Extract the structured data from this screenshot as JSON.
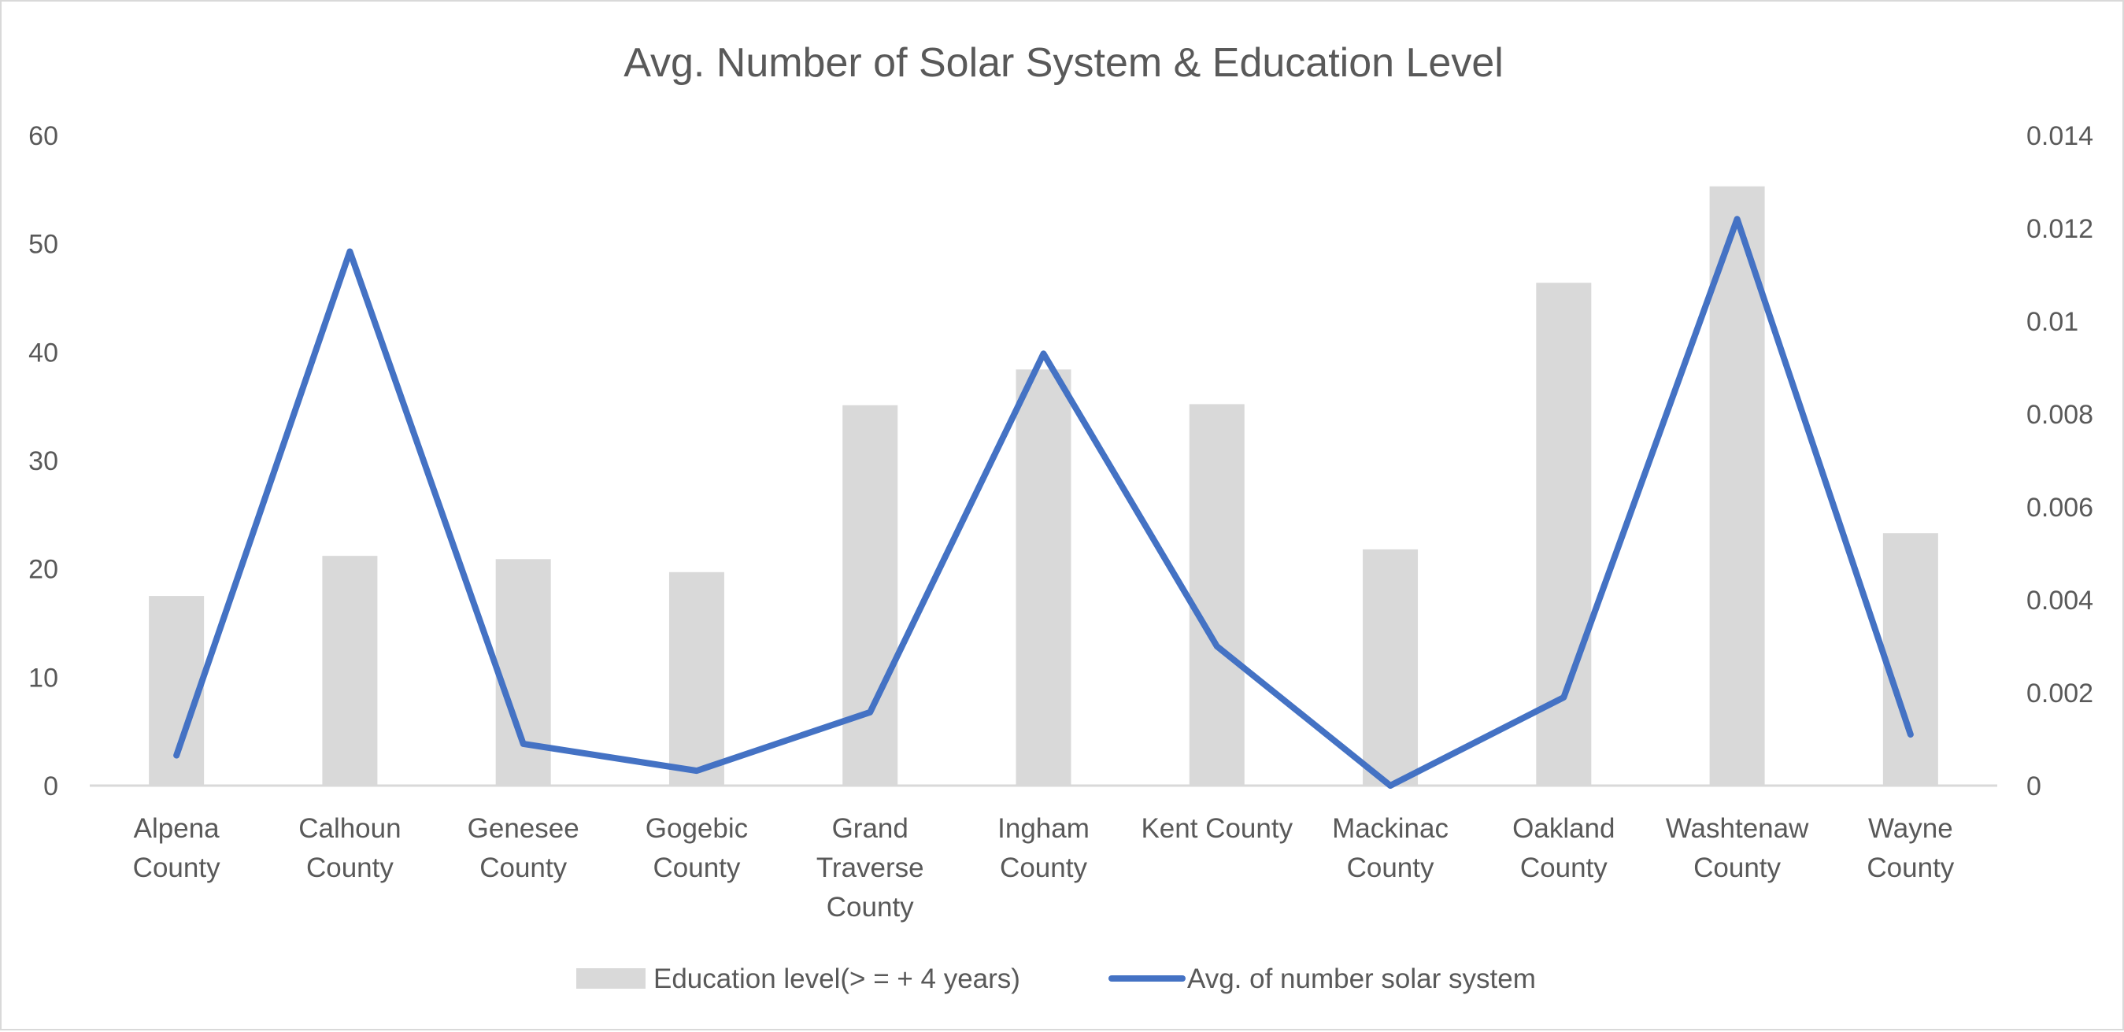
{
  "chart_data": {
    "type": "bar",
    "title": "Avg. Number of Solar System & Education Level",
    "categories": [
      [
        "Alpena",
        "County"
      ],
      [
        "Calhoun",
        "County"
      ],
      [
        "Genesee",
        "County"
      ],
      [
        "Gogebic",
        "County"
      ],
      [
        "Grand",
        "Traverse",
        "County"
      ],
      [
        "Ingham",
        "County"
      ],
      [
        "Kent County"
      ],
      [
        "Mackinac",
        "County"
      ],
      [
        "Oakland",
        "County"
      ],
      [
        "Washtenaw",
        "County"
      ],
      [
        "Wayne",
        "County"
      ]
    ],
    "left_axis": {
      "min": 0,
      "max": 60,
      "ticks": [
        "0",
        "10",
        "20",
        "30",
        "40",
        "50",
        "60"
      ]
    },
    "right_axis": {
      "min": 0,
      "max": 0.014,
      "ticks": [
        "0",
        "0.002",
        "0.004",
        "0.006",
        "0.008",
        "0.01",
        "0.012",
        "0.014"
      ]
    },
    "series": [
      {
        "name": "Education level(> = + 4 years)",
        "type": "bar",
        "axis": "left",
        "color": "#d9d9d9",
        "values": [
          17.5,
          21.2,
          20.9,
          19.7,
          35.1,
          38.4,
          35.2,
          21.8,
          46.4,
          55.3,
          23.3
        ]
      },
      {
        "name": "Avg. of number solar system",
        "type": "line",
        "axis": "right",
        "color": "#4472c4",
        "values": [
          0.00065,
          0.0115,
          0.0009,
          0.00032,
          0.00158,
          0.0093,
          0.003,
          0.0,
          0.0019,
          0.0122,
          0.0011
        ]
      }
    ],
    "grid": false,
    "legend_position": "bottom"
  }
}
